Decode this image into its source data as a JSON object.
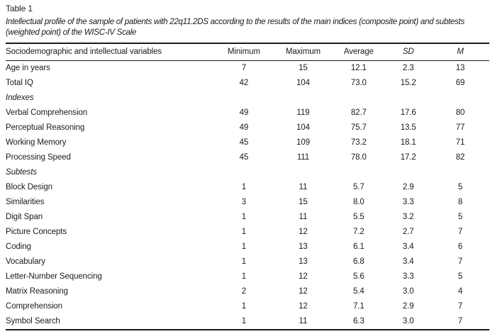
{
  "page": {
    "title": "Table 1",
    "caption": "Intellectual profile of the sample of patients with 22q11.2DS according to the results of the main indices (composite point) and subtests (weighted point) of the WISC-IV Scale"
  },
  "colors": {
    "background": "#ffffff",
    "text": "#1b1b1b",
    "rule": "#1b1b1b"
  },
  "table": {
    "header": {
      "variable_col": "Sociodemographic and intellectual variables",
      "stat_cols": [
        {
          "label": "Minimum",
          "italic": false
        },
        {
          "label": "Maximum",
          "italic": false
        },
        {
          "label": "Average",
          "italic": false
        },
        {
          "label": "SD",
          "italic": true
        },
        {
          "label": "M",
          "italic": true
        }
      ]
    },
    "rows": [
      {
        "type": "data",
        "label": "Age in years",
        "values": [
          "7",
          "15",
          "12.1",
          "2.3",
          "13"
        ]
      },
      {
        "type": "data",
        "label": "Total IQ",
        "values": [
          "42",
          "104",
          "73.0",
          "15.2",
          "69"
        ]
      },
      {
        "type": "section",
        "label": "Indexes",
        "values": []
      },
      {
        "type": "data",
        "label": "Verbal Comprehension",
        "values": [
          "49",
          "119",
          "82.7",
          "17.6",
          "80"
        ]
      },
      {
        "type": "data",
        "label": "Perceptual Reasoning",
        "values": [
          "49",
          "104",
          "75.7",
          "13.5",
          "77"
        ]
      },
      {
        "type": "data",
        "label": "Working Memory",
        "values": [
          "45",
          "109",
          "73.2",
          "18.1",
          "71"
        ]
      },
      {
        "type": "data",
        "label": "Processing Speed",
        "values": [
          "45",
          "111",
          "78.0",
          "17.2",
          "82"
        ]
      },
      {
        "type": "section",
        "label": "Subtests",
        "values": []
      },
      {
        "type": "data",
        "label": "Block Design",
        "values": [
          "1",
          "11",
          "5.7",
          "2.9",
          "5"
        ]
      },
      {
        "type": "data",
        "label": "Similarities",
        "values": [
          "3",
          "15",
          "8.0",
          "3.3",
          "8"
        ]
      },
      {
        "type": "data",
        "label": "Digit Span",
        "values": [
          "1",
          "11",
          "5.5",
          "3.2",
          "5"
        ]
      },
      {
        "type": "data",
        "label": "Picture Concepts",
        "values": [
          "1",
          "12",
          "7.2",
          "2.7",
          "7"
        ]
      },
      {
        "type": "data",
        "label": "Coding",
        "values": [
          "1",
          "13",
          "6.1",
          "3.4",
          "6"
        ]
      },
      {
        "type": "data",
        "label": "Vocabulary",
        "values": [
          "1",
          "13",
          "6.8",
          "3.4",
          "7"
        ]
      },
      {
        "type": "data",
        "label": "Letter-Number Sequencing",
        "values": [
          "1",
          "12",
          "5.6",
          "3.3",
          "5"
        ]
      },
      {
        "type": "data",
        "label": "Matrix Reasoning",
        "values": [
          "2",
          "12",
          "5.4",
          "3.0",
          "4"
        ]
      },
      {
        "type": "data",
        "label": "Comprehension",
        "values": [
          "1",
          "12",
          "7.1",
          "2.9",
          "7"
        ]
      },
      {
        "type": "data",
        "label": "Symbol Search",
        "values": [
          "1",
          "11",
          "6.3",
          "3.0",
          "7"
        ]
      }
    ]
  }
}
